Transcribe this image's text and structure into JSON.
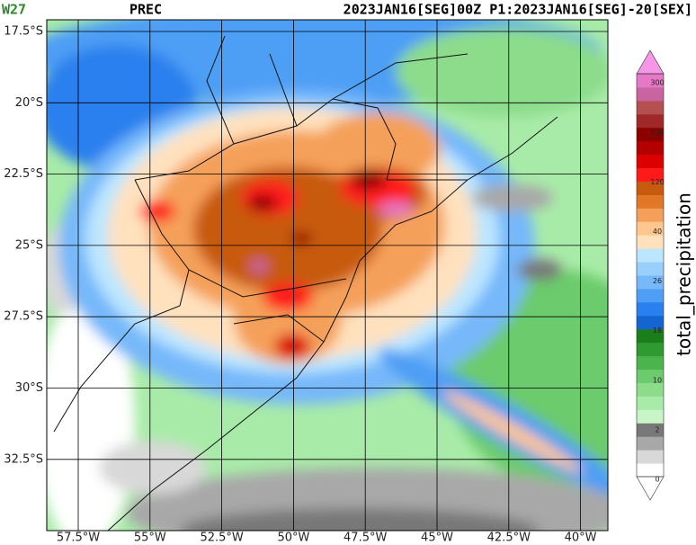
{
  "header": {
    "left": "W27",
    "center": "PREC",
    "right": "2023JAN16[SEG]00Z P1:2023JAN16[SEG]-20[SEX]"
  },
  "map": {
    "lat_labels": [
      "17.5°S",
      "20°S",
      "22.5°S",
      "25°S",
      "27.5°S",
      "30°S",
      "32.5°S"
    ],
    "lon_labels": [
      "57.5°W",
      "55°W",
      "52.5°W",
      "50°W",
      "47.5°W",
      "45°W",
      "42.5°W",
      "40°W"
    ]
  },
  "colorbar": {
    "title": "total_precipitation",
    "tick_labels": [
      "0",
      "2",
      "10",
      "18",
      "26",
      "40",
      "120",
      "200",
      "300"
    ],
    "colors": [
      "#ffffff",
      "#d8d8d8",
      "#a8a8a8",
      "#787878",
      "#c8f5c8",
      "#a8eba8",
      "#8cdc8c",
      "#6ccb6c",
      "#4cb44c",
      "#2f9a2f",
      "#1a7f1a",
      "#1464d2",
      "#2a80ee",
      "#4e9ef5",
      "#76b8fa",
      "#98d0fb",
      "#bce6ff",
      "#ffe1be",
      "#ffc690",
      "#f5a05a",
      "#e07828",
      "#c85a0f",
      "#ff1a1a",
      "#dc0000",
      "#b40000",
      "#8c0000",
      "#a02828",
      "#b45050",
      "#c864a0",
      "#e678c8"
    ]
  }
}
